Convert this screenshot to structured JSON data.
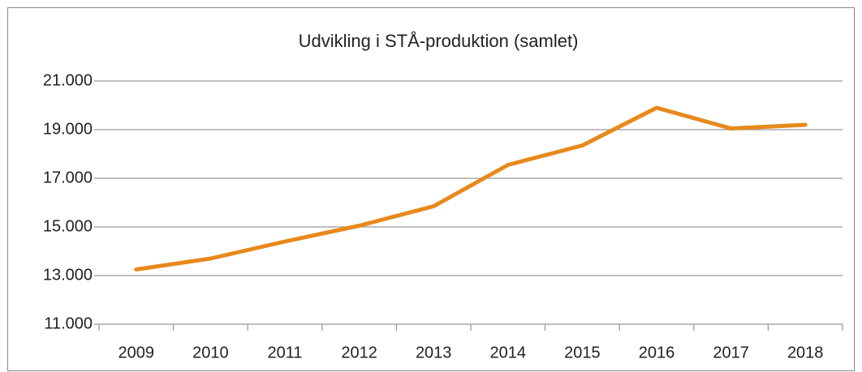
{
  "chart_data": {
    "type": "line",
    "title": "Udvikling i STÅ-produktion (samlet)",
    "categories": [
      "2009",
      "2010",
      "2011",
      "2012",
      "2013",
      "2014",
      "2015",
      "2016",
      "2017",
      "2018"
    ],
    "series": [
      {
        "name": "STÅ-produktion",
        "color": "#e8891c",
        "values": [
          13250,
          13700,
          14400,
          15050,
          15850,
          17550,
          18350,
          19900,
          19050,
          19200
        ]
      }
    ],
    "ylim": [
      11000,
      21000
    ],
    "yticks": [
      {
        "value": 11000,
        "label": "11.000"
      },
      {
        "value": 13000,
        "label": "13.000"
      },
      {
        "value": 15000,
        "label": "15.000"
      },
      {
        "value": 17000,
        "label": "17.000"
      },
      {
        "value": 19000,
        "label": "19.000"
      },
      {
        "value": 21000,
        "label": "21.000"
      }
    ],
    "grid": true
  }
}
